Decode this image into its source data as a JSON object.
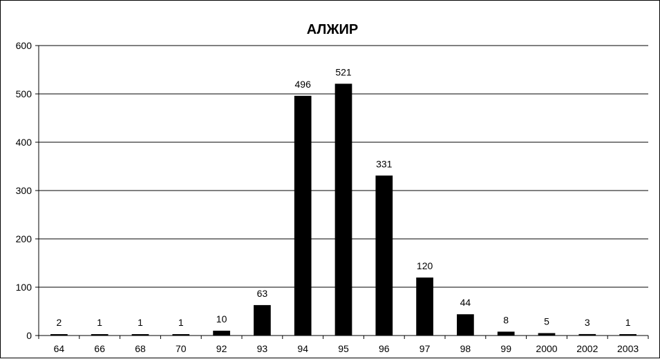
{
  "chart_data": {
    "type": "bar",
    "title": "АЛЖИР",
    "xlabel": "",
    "ylabel": "",
    "categories": [
      "64",
      "66",
      "68",
      "70",
      "92",
      "93",
      "94",
      "95",
      "96",
      "97",
      "98",
      "99",
      "2000",
      "2002",
      "2003"
    ],
    "values": [
      2,
      1,
      1,
      1,
      10,
      63,
      496,
      521,
      331,
      120,
      44,
      8,
      5,
      3,
      1
    ],
    "data_labels": [
      "2",
      "1",
      "1",
      "1",
      "10",
      "63",
      "496",
      "521",
      "331",
      "120",
      "44",
      "8",
      "5",
      "3",
      "1"
    ],
    "ylim": [
      0,
      600
    ],
    "yticks": [
      0,
      100,
      200,
      300,
      400,
      500,
      600
    ],
    "ytick_labels": [
      "0",
      "100",
      "200",
      "300",
      "400",
      "500",
      "600"
    ],
    "grid": true,
    "legend": "none",
    "bar_color": "#000000"
  }
}
